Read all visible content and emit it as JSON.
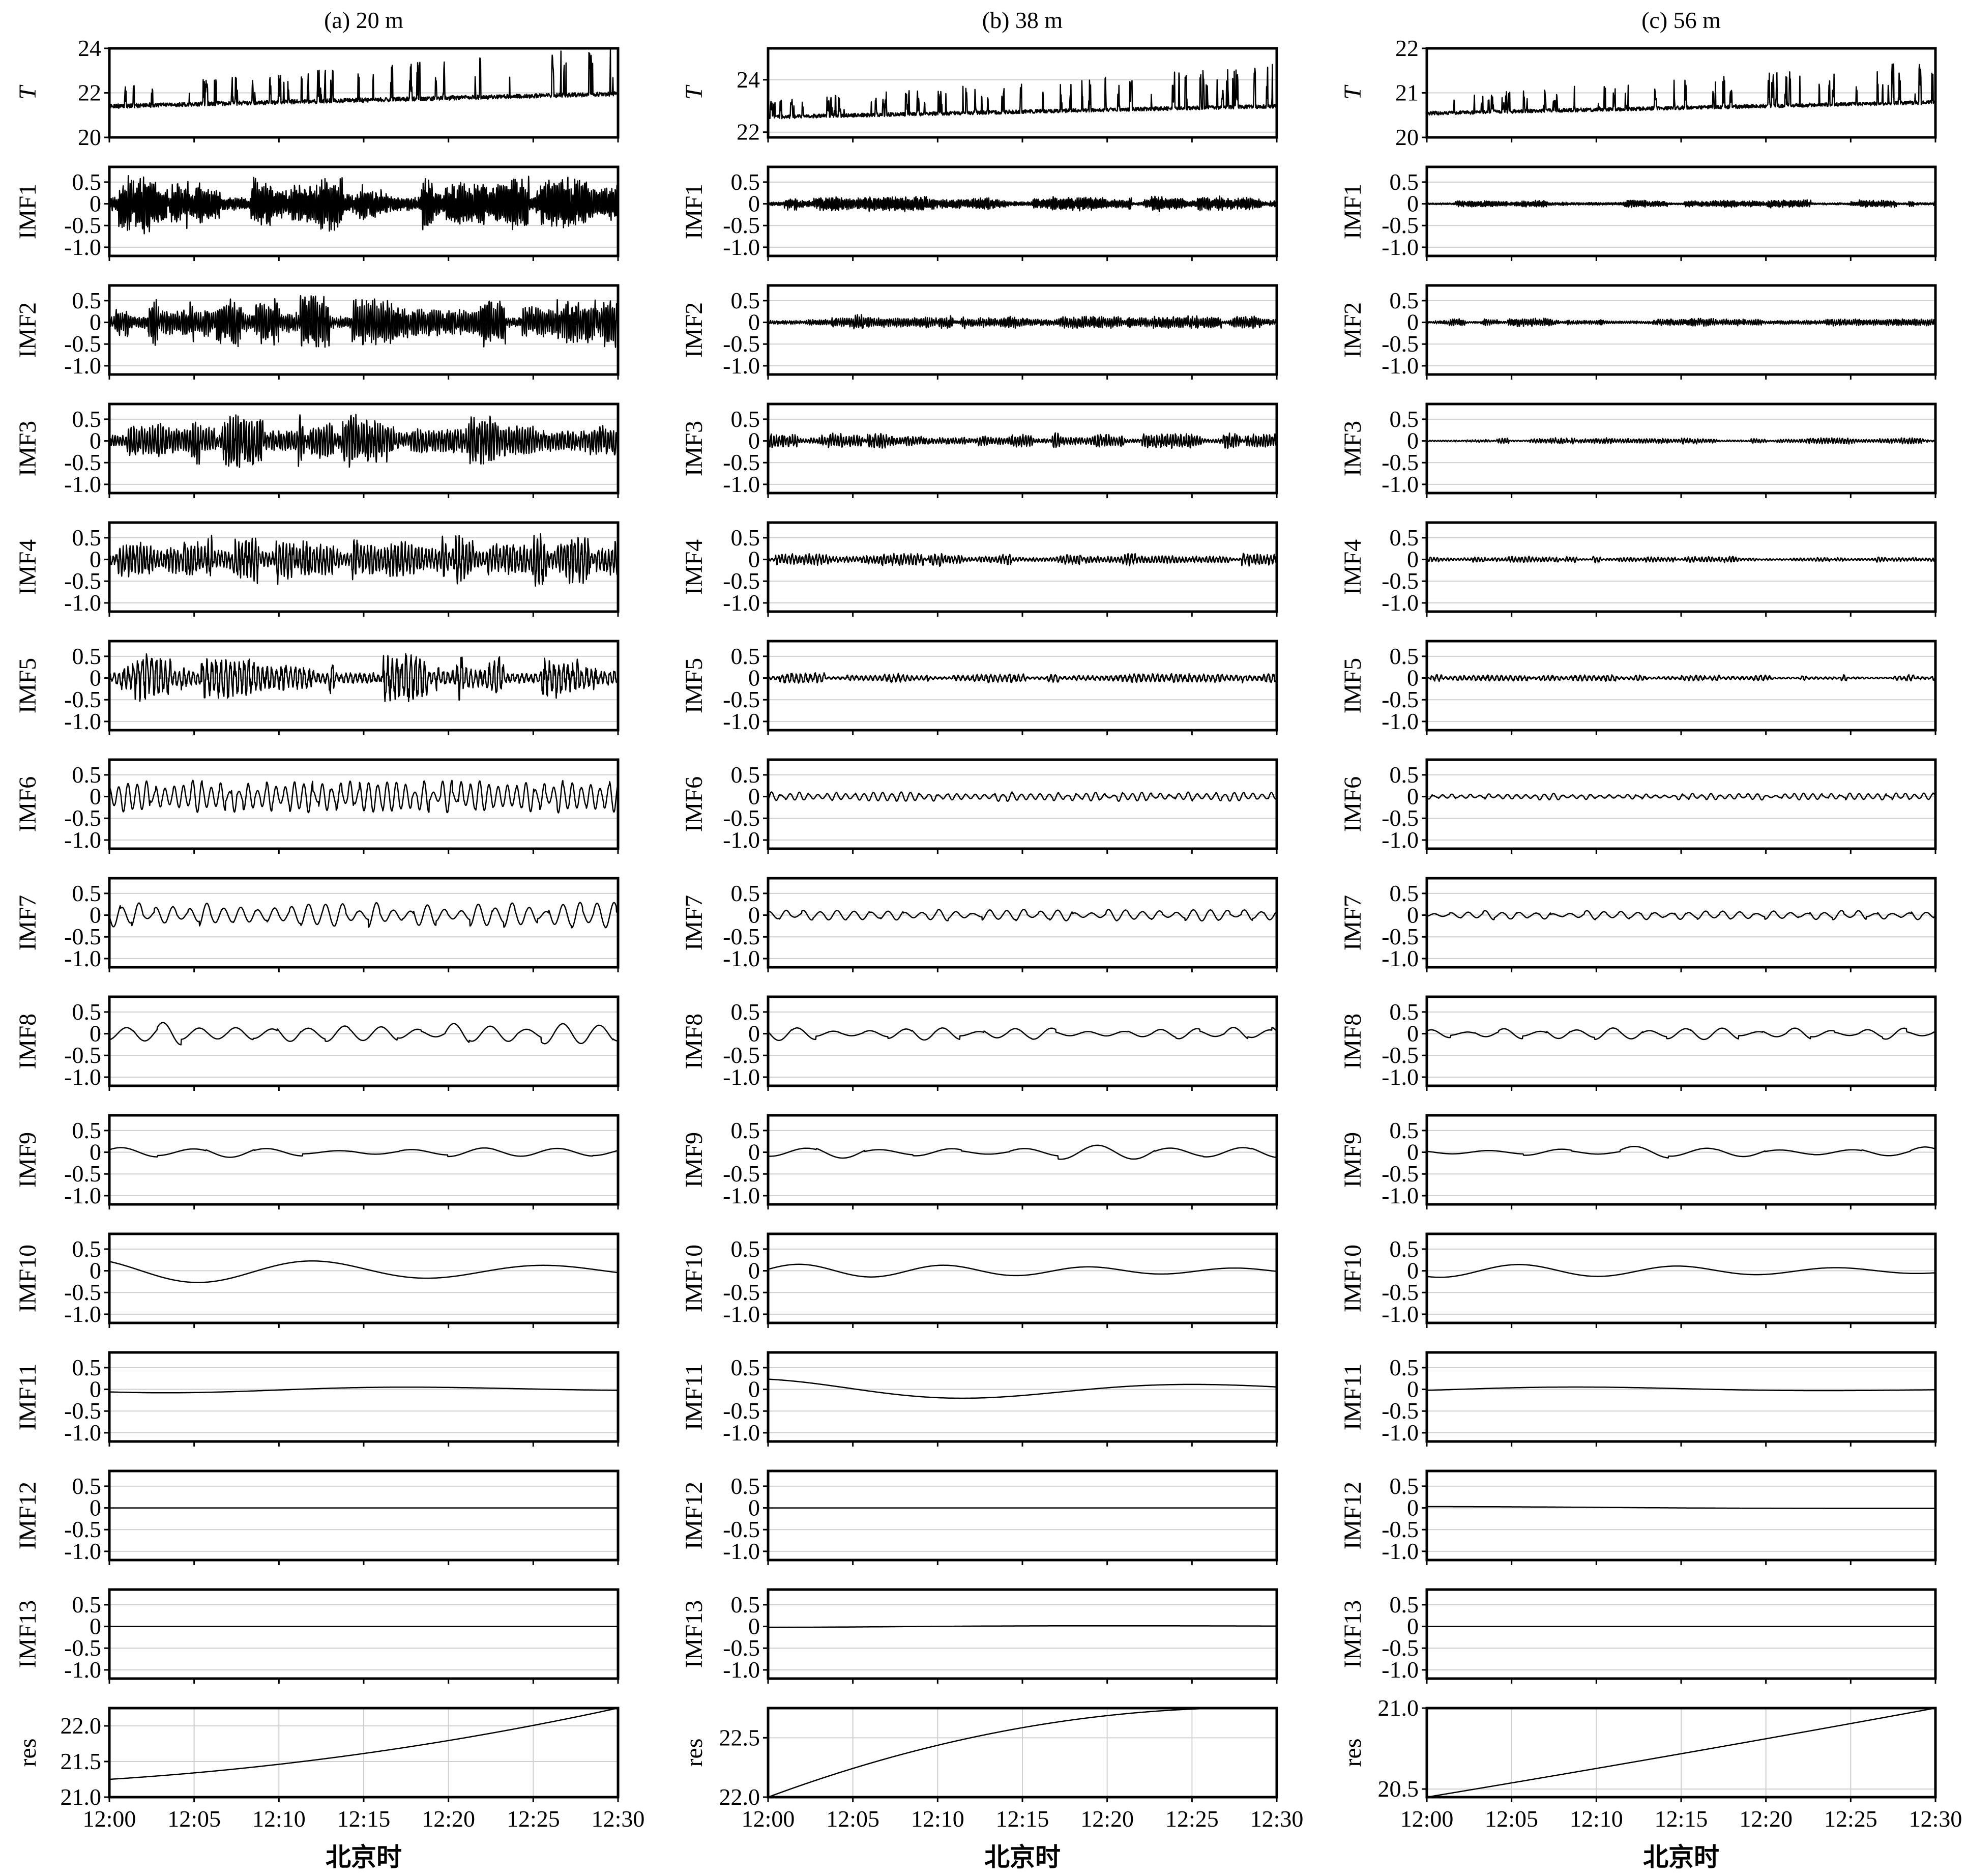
{
  "chart_data": [
    {
      "type": "line",
      "title": "(a) 20 m",
      "xlabel": "北京时",
      "x_ticks": [
        "12:00",
        "12:05",
        "12:10",
        "12:15",
        "12:20",
        "12:25",
        "12:30"
      ],
      "panels": [
        {
          "ylabel": "T",
          "ylim": [
            20,
            24
          ],
          "yticks": [
            "20",
            "22",
            "24"
          ],
          "shape": "temp",
          "baseline": 21.3,
          "amp": 1.6,
          "seed": 11
        },
        {
          "ylabel": "IMF1",
          "shape": "noise",
          "amp": 0.45,
          "freq": 300,
          "seed": 12
        },
        {
          "ylabel": "IMF2",
          "shape": "noise",
          "amp": 0.4,
          "freq": 240,
          "seed": 13
        },
        {
          "ylabel": "IMF3",
          "shape": "noise",
          "amp": 0.4,
          "freq": 190,
          "seed": 14
        },
        {
          "ylabel": "IMF4",
          "shape": "noise",
          "amp": 0.4,
          "freq": 150,
          "seed": 15
        },
        {
          "ylabel": "IMF5",
          "shape": "noise",
          "amp": 0.38,
          "freq": 110,
          "seed": 16
        },
        {
          "ylabel": "IMF6",
          "shape": "osc",
          "amp": 0.28,
          "freq": 55,
          "seed": 17
        },
        {
          "ylabel": "IMF7",
          "shape": "osc",
          "amp": 0.22,
          "freq": 30,
          "seed": 18
        },
        {
          "ylabel": "IMF8",
          "shape": "osc",
          "amp": 0.2,
          "freq": 14,
          "seed": 19
        },
        {
          "ylabel": "IMF9",
          "shape": "osc",
          "amp": 0.09,
          "freq": 7,
          "seed": 20
        },
        {
          "ylabel": "IMF10",
          "shape": "slow",
          "amp": 0.28,
          "freq": 2.2,
          "seed": 21
        },
        {
          "ylabel": "IMF11",
          "shape": "slow",
          "amp": 0.08,
          "freq": 1.0,
          "seed": 22
        },
        {
          "ylabel": "IMF12",
          "shape": "flat",
          "amp": 0.0,
          "freq": 1,
          "seed": 23
        },
        {
          "ylabel": "IMF13",
          "shape": "flat",
          "amp": 0.0,
          "freq": 1,
          "seed": 24
        },
        {
          "ylabel": "res",
          "ylim": [
            21.0,
            22.25
          ],
          "yticks": [
            "21.0",
            "21.5",
            "22.0"
          ],
          "shape": "trend",
          "start": 21.25,
          "end": 22.25,
          "curv": 0.55
        }
      ]
    },
    {
      "type": "line",
      "title": "(b) 38 m",
      "xlabel": "北京时",
      "x_ticks": [
        "12:00",
        "12:05",
        "12:10",
        "12:15",
        "12:20",
        "12:25",
        "12:30"
      ],
      "panels": [
        {
          "ylabel": "T",
          "ylim": [
            21.8,
            25.2
          ],
          "yticks": [
            "22",
            "24"
          ],
          "shape": "temp",
          "baseline": 22.5,
          "amp": 1.2,
          "seed": 31
        },
        {
          "ylabel": "IMF1",
          "shape": "noise",
          "amp": 0.12,
          "freq": 300,
          "seed": 32
        },
        {
          "ylabel": "IMF2",
          "shape": "noise",
          "amp": 0.12,
          "freq": 240,
          "seed": 33
        },
        {
          "ylabel": "IMF3",
          "shape": "noise",
          "amp": 0.12,
          "freq": 190,
          "seed": 34
        },
        {
          "ylabel": "IMF4",
          "shape": "noise",
          "amp": 0.1,
          "freq": 150,
          "seed": 35
        },
        {
          "ylabel": "IMF5",
          "shape": "noise",
          "amp": 0.08,
          "freq": 110,
          "seed": 36
        },
        {
          "ylabel": "IMF6",
          "shape": "osc",
          "amp": 0.08,
          "freq": 55,
          "seed": 37
        },
        {
          "ylabel": "IMF7",
          "shape": "osc",
          "amp": 0.1,
          "freq": 30,
          "seed": 38
        },
        {
          "ylabel": "IMF8",
          "shape": "osc",
          "amp": 0.12,
          "freq": 14,
          "seed": 39
        },
        {
          "ylabel": "IMF9",
          "shape": "osc",
          "amp": 0.12,
          "freq": 7,
          "seed": 40
        },
        {
          "ylabel": "IMF10",
          "shape": "slow",
          "amp": 0.15,
          "freq": 3.5,
          "seed": 41
        },
        {
          "ylabel": "IMF11",
          "shape": "slow",
          "amp": 0.25,
          "freq": 1.1,
          "seed": 42
        },
        {
          "ylabel": "IMF12",
          "shape": "flat",
          "amp": 0.0,
          "freq": 1,
          "seed": 43
        },
        {
          "ylabel": "IMF13",
          "shape": "slow",
          "amp": 0.03,
          "freq": 0.5,
          "seed": 44
        },
        {
          "ylabel": "res",
          "ylim": [
            22.0,
            22.75
          ],
          "yticks": [
            "22.0",
            "22.5"
          ],
          "shape": "trend",
          "start": 22.0,
          "end": 22.75,
          "curv": -0.7
        }
      ]
    },
    {
      "type": "line",
      "title": "(c) 56 m",
      "xlabel": "北京时",
      "x_ticks": [
        "12:00",
        "12:05",
        "12:10",
        "12:15",
        "12:20",
        "12:25",
        "12:30"
      ],
      "panels": [
        {
          "ylabel": "T",
          "ylim": [
            20,
            22
          ],
          "yticks": [
            "20",
            "21",
            "22"
          ],
          "shape": "temp",
          "baseline": 20.5,
          "amp": 0.7,
          "seed": 51
        },
        {
          "ylabel": "IMF1",
          "shape": "noise",
          "amp": 0.06,
          "freq": 300,
          "seed": 52
        },
        {
          "ylabel": "IMF2",
          "shape": "noise",
          "amp": 0.06,
          "freq": 240,
          "seed": 53
        },
        {
          "ylabel": "IMF3",
          "shape": "noise",
          "amp": 0.05,
          "freq": 190,
          "seed": 54
        },
        {
          "ylabel": "IMF4",
          "shape": "noise",
          "amp": 0.05,
          "freq": 150,
          "seed": 55
        },
        {
          "ylabel": "IMF5",
          "shape": "noise",
          "amp": 0.05,
          "freq": 110,
          "seed": 56
        },
        {
          "ylabel": "IMF6",
          "shape": "osc",
          "amp": 0.06,
          "freq": 55,
          "seed": 57
        },
        {
          "ylabel": "IMF7",
          "shape": "osc",
          "amp": 0.08,
          "freq": 30,
          "seed": 58
        },
        {
          "ylabel": "IMF8",
          "shape": "osc",
          "amp": 0.1,
          "freq": 14,
          "seed": 59
        },
        {
          "ylabel": "IMF9",
          "shape": "osc",
          "amp": 0.1,
          "freq": 7,
          "seed": 60
        },
        {
          "ylabel": "IMF10",
          "shape": "slow",
          "amp": 0.15,
          "freq": 3.2,
          "seed": 61
        },
        {
          "ylabel": "IMF11",
          "shape": "slow",
          "amp": 0.06,
          "freq": 1.0,
          "seed": 62
        },
        {
          "ylabel": "IMF12",
          "shape": "slow",
          "amp": 0.03,
          "freq": 0.5,
          "seed": 63
        },
        {
          "ylabel": "IMF13",
          "shape": "flat",
          "amp": 0.0,
          "freq": 1,
          "seed": 64
        },
        {
          "ylabel": "res",
          "ylim": [
            20.45,
            21.0
          ],
          "yticks": [
            "20.5",
            "21.0"
          ],
          "shape": "trend",
          "start": 20.45,
          "end": 21.0,
          "curv": 0.05
        }
      ]
    }
  ],
  "imf_axis": {
    "ylim": [
      -1.2,
      0.85
    ],
    "yticks": [
      "0.5",
      "0",
      "-0.5",
      "-1.0"
    ]
  }
}
